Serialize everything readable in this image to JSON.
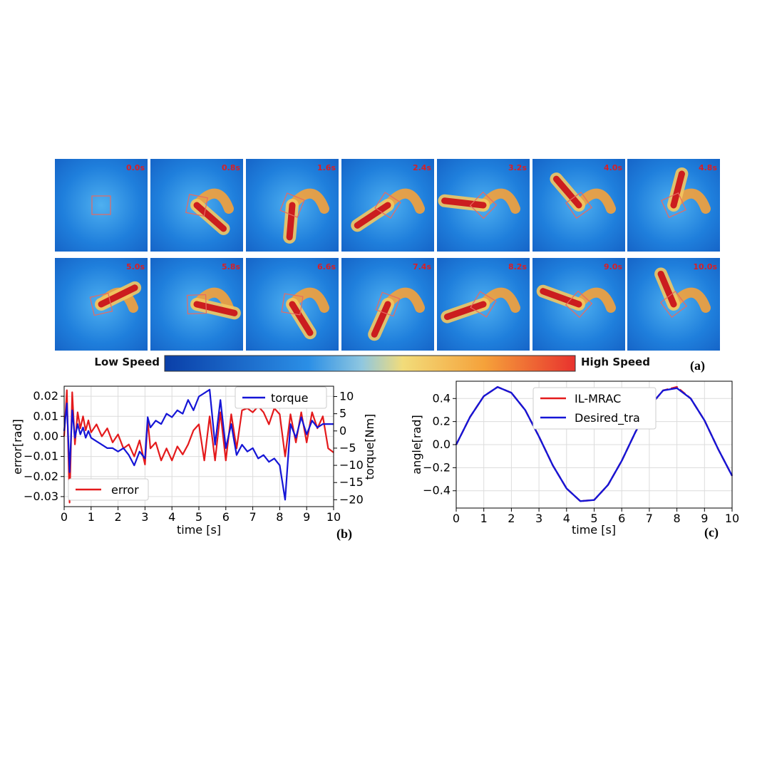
{
  "panel_a": {
    "label": "(a)",
    "colorbar": {
      "low_label": "Low Speed",
      "high_label": "High Speed",
      "colors": [
        "#0a3fa8",
        "#1a78e0",
        "#4aa8ee",
        "#f2dc7a",
        "#f5a13a",
        "#e8322e"
      ]
    },
    "frames": [
      "0.0s",
      "0.8s",
      "1.6s",
      "2.4s",
      "3.2s",
      "4.0s",
      "4.8s",
      "5.0s",
      "5.8s",
      "6.6s",
      "7.4s",
      "8.2s",
      "9.0s",
      "10.0s"
    ]
  },
  "panel_b": {
    "label": "(b)",
    "xlabel": "time [s]",
    "ylabel_left": "error[rad]",
    "ylabel_right": "torque[Nm]",
    "xticks": [
      "0",
      "1",
      "2",
      "3",
      "4",
      "5",
      "6",
      "7",
      "8",
      "9",
      "10"
    ],
    "yticks_left": [
      "0.02",
      "0.01",
      "0.00",
      "−0.01",
      "−0.02",
      "−0.03"
    ],
    "yticks_right": [
      "10",
      "5",
      "0",
      "−5",
      "−10",
      "−15",
      "−20"
    ],
    "legend_error": "error",
    "legend_torque": "torque"
  },
  "panel_c": {
    "label": "(c)",
    "xlabel": "time [s]",
    "ylabel": "angle[rad]",
    "xticks": [
      "0",
      "1",
      "2",
      "3",
      "4",
      "5",
      "6",
      "7",
      "8",
      "9",
      "10"
    ],
    "yticks": [
      "0.4",
      "0.2",
      "0.0",
      "−0.2",
      "−0.4"
    ],
    "legend_a": "IL-MRAC",
    "legend_b": "Desired_tra"
  },
  "chart_data": [
    {
      "type": "line",
      "xlim": [
        0,
        10
      ],
      "ylim": [
        -0.035,
        0.025
      ],
      "y2lim": [
        -22,
        13
      ],
      "xlabel": "time [s]",
      "ylabel": "error[rad]",
      "y2label": "torque[Nm]",
      "legend": "error: lower-left; torque: top-right",
      "grid": true,
      "series": [
        {
          "name": "error",
          "color": "#e41a1c",
          "axis": "left",
          "x": [
            0,
            0.1,
            0.2,
            0.3,
            0.4,
            0.5,
            0.6,
            0.7,
            0.8,
            0.9,
            1.0,
            1.2,
            1.4,
            1.6,
            1.8,
            2.0,
            2.2,
            2.4,
            2.6,
            2.8,
            3.0,
            3.1,
            3.2,
            3.4,
            3.6,
            3.8,
            4.0,
            4.2,
            4.4,
            4.6,
            4.8,
            5.0,
            5.2,
            5.4,
            5.6,
            5.8,
            6.0,
            6.2,
            6.4,
            6.6,
            6.8,
            7.0,
            7.2,
            7.4,
            7.6,
            7.8,
            8.0,
            8.2,
            8.4,
            8.6,
            8.8,
            9.0,
            9.2,
            9.4,
            9.6,
            9.8,
            10.0
          ],
          "y": [
            0.0,
            0.023,
            -0.033,
            0.022,
            -0.004,
            0.012,
            0.004,
            0.01,
            0.003,
            0.008,
            0.002,
            0.006,
            0.0,
            0.004,
            -0.003,
            0.001,
            -0.006,
            -0.004,
            -0.01,
            -0.002,
            -0.014,
            0.008,
            -0.006,
            -0.003,
            -0.012,
            -0.006,
            -0.012,
            -0.005,
            -0.009,
            -0.004,
            0.003,
            0.006,
            -0.012,
            0.01,
            -0.012,
            0.012,
            -0.012,
            0.011,
            -0.006,
            0.013,
            0.014,
            0.012,
            0.015,
            0.012,
            0.006,
            0.014,
            0.011,
            -0.01,
            0.011,
            -0.003,
            0.012,
            -0.003,
            0.012,
            0.004,
            0.01,
            -0.006,
            -0.008
          ]
        },
        {
          "name": "torque",
          "color": "#1515d6",
          "axis": "right",
          "x": [
            0,
            0.1,
            0.2,
            0.3,
            0.4,
            0.5,
            0.6,
            0.7,
            0.8,
            0.9,
            1.0,
            1.2,
            1.4,
            1.6,
            1.8,
            2.0,
            2.2,
            2.4,
            2.6,
            2.8,
            3.0,
            3.1,
            3.2,
            3.4,
            3.6,
            3.8,
            4.0,
            4.2,
            4.4,
            4.6,
            4.8,
            5.0,
            5.2,
            5.4,
            5.6,
            5.8,
            6.0,
            6.2,
            6.4,
            6.6,
            6.8,
            7.0,
            7.2,
            7.4,
            7.6,
            7.8,
            8.0,
            8.2,
            8.4,
            8.6,
            8.8,
            9.0,
            9.2,
            9.4,
            9.6,
            9.8,
            10.0
          ],
          "y": [
            0,
            8,
            -12,
            6,
            -2,
            2,
            -1,
            1,
            -2,
            0,
            -2,
            -3,
            -4,
            -5,
            -5,
            -6,
            -5,
            -7,
            -10,
            -6,
            -8,
            4,
            1,
            3,
            2,
            5,
            4,
            6,
            5,
            9,
            6,
            10,
            11,
            12,
            -4,
            9,
            -5,
            2,
            -7,
            -4,
            -6,
            -5,
            -8,
            -7,
            -9,
            -8,
            -10,
            -20,
            2,
            -2,
            4,
            -1,
            3,
            1,
            2,
            2,
            2
          ]
        }
      ]
    },
    {
      "type": "line",
      "xlim": [
        0,
        10
      ],
      "ylim": [
        -0.55,
        0.55
      ],
      "xlabel": "time [s]",
      "ylabel": "angle[rad]",
      "legend": "top-center",
      "grid": true,
      "series": [
        {
          "name": "IL-MRAC",
          "color": "#e41a1c",
          "x": [
            0,
            0.5,
            1.0,
            1.5,
            2.0,
            2.5,
            3.0,
            3.5,
            4.0,
            4.5,
            5.0,
            5.5,
            6.0,
            6.5,
            7.0,
            7.5,
            8.0,
            8.5,
            9.0,
            9.5,
            10.0
          ],
          "y": [
            0.0,
            0.24,
            0.42,
            0.5,
            0.45,
            0.3,
            0.07,
            -0.18,
            -0.38,
            -0.49,
            -0.48,
            -0.35,
            -0.14,
            0.11,
            0.33,
            0.47,
            0.5,
            0.4,
            0.21,
            -0.04,
            -0.27
          ]
        },
        {
          "name": "Desired_tra",
          "color": "#1515d6",
          "x": [
            0,
            0.5,
            1.0,
            1.5,
            2.0,
            2.5,
            3.0,
            3.5,
            4.0,
            4.5,
            5.0,
            5.5,
            6.0,
            6.5,
            7.0,
            7.5,
            8.0,
            8.5,
            9.0,
            9.5,
            10.0
          ],
          "y": [
            0.0,
            0.24,
            0.42,
            0.5,
            0.45,
            0.3,
            0.07,
            -0.18,
            -0.38,
            -0.49,
            -0.48,
            -0.35,
            -0.14,
            0.11,
            0.33,
            0.47,
            0.49,
            0.4,
            0.21,
            -0.04,
            -0.27
          ]
        }
      ]
    }
  ]
}
